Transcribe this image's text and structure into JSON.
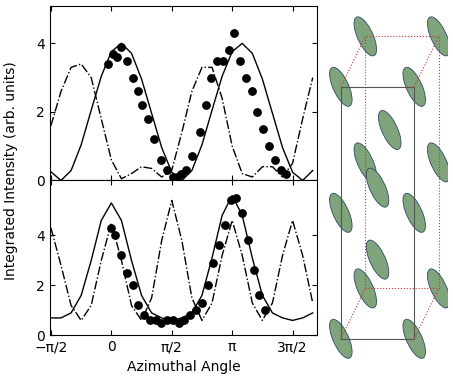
{
  "chart_data": [
    {
      "type": "line",
      "y_label": "Integrated Intensity (arb. units)",
      "xlim": [
        -1.6,
        5.35
      ],
      "ylim": [
        0,
        5.1
      ],
      "xticks": [
        {
          "value": -1.5708,
          "label": "−π/2"
        },
        0,
        {
          "value": 1.5708,
          "label": "π/2"
        },
        {
          "value": 3.1416,
          "label": "π"
        },
        {
          "value": 4.7124,
          "label": "3π/2"
        }
      ],
      "yticks": [
        0,
        2,
        4
      ],
      "tick_labels": "y",
      "series": [
        {
          "type": "scatter",
          "marker": "o",
          "color": "#000000",
          "x": [
            -0.1,
            0.05,
            0.15,
            0.25,
            0.4,
            0.55,
            0.7,
            0.8,
            0.95,
            1.1,
            1.3,
            1.45,
            1.6,
            1.7,
            1.8,
            1.95,
            2.1,
            2.3,
            2.45,
            2.6,
            2.75,
            2.9,
            3.05,
            3.2,
            3.35,
            3.5,
            3.65,
            3.8,
            3.95,
            4.1,
            4.25,
            4.4,
            4.55
          ],
          "values": [
            3.4,
            3.7,
            3.6,
            3.9,
            3.5,
            3.0,
            2.6,
            2.2,
            1.8,
            1.2,
            0.6,
            0.3,
            0.1,
            0.1,
            0.2,
            0.3,
            0.7,
            1.4,
            2.2,
            3.0,
            3.5,
            3.5,
            3.8,
            4.3,
            3.5,
            3.0,
            2.6,
            2.0,
            1.5,
            1.0,
            0.6,
            0.3,
            0.2
          ]
        },
        {
          "type": "line",
          "line_style": "solid",
          "color": "#000000",
          "x": [
            -1.571,
            -1.309,
            -1.047,
            -0.785,
            -0.524,
            -0.262,
            0,
            0.262,
            0.524,
            0.785,
            1.047,
            1.309,
            1.571,
            1.833,
            2.094,
            2.356,
            2.618,
            2.88,
            3.142,
            3.403,
            3.665,
            3.927,
            4.189,
            4.451,
            4.712,
            4.974,
            5.236
          ],
          "values": [
            0.25,
            0.0,
            0.29,
            1.04,
            2.05,
            3.04,
            3.76,
            4.0,
            3.71,
            2.96,
            1.96,
            0.96,
            0.24,
            0.0,
            0.29,
            1.04,
            2.05,
            3.04,
            3.76,
            4.0,
            3.71,
            2.96,
            1.96,
            0.96,
            0.24,
            0.0,
            0.29
          ]
        },
        {
          "type": "line",
          "line_style": "dashdot",
          "color": "#000000",
          "x": [
            -1.571,
            -1.309,
            -1.047,
            -0.785,
            -0.524,
            -0.262,
            0,
            0.262,
            0.524,
            0.785,
            1.047,
            1.309,
            1.571,
            1.833,
            2.094,
            2.356,
            2.618,
            2.88,
            3.142,
            3.403,
            3.665,
            3.927,
            4.189,
            4.451,
            4.712,
            4.974,
            5.236
          ],
          "values": [
            1.6,
            2.6,
            3.3,
            3.4,
            3.0,
            1.8,
            0.6,
            0.05,
            0.2,
            0.4,
            0.35,
            0.1,
            0.3,
            1.4,
            2.6,
            3.3,
            3.3,
            2.4,
            1.0,
            0.2,
            0.1,
            0.4,
            0.4,
            0.1,
            0.5,
            1.8,
            3.0
          ]
        }
      ]
    },
    {
      "type": "line",
      "x_label": "Azimuthal Angle",
      "xlim": [
        -1.6,
        5.35
      ],
      "ylim": [
        0,
        6.2
      ],
      "xticks": [
        {
          "value": -1.5708,
          "label": "−π/2"
        },
        0,
        {
          "value": 1.5708,
          "label": "π/2"
        },
        {
          "value": 3.1416,
          "label": "π"
        },
        {
          "value": 4.7124,
          "label": "3π/2"
        }
      ],
      "yticks": [
        0,
        2,
        4
      ],
      "series": [
        {
          "type": "scatter",
          "marker": "o",
          "color": "#000000",
          "x": [
            0,
            0.1,
            0.25,
            0.4,
            0.55,
            0.7,
            0.85,
            1.0,
            1.15,
            1.3,
            1.45,
            1.6,
            1.75,
            1.9,
            2.05,
            2.2,
            2.35,
            2.5,
            2.65,
            2.8,
            2.95,
            3.1,
            3.25,
            3.4,
            3.55,
            3.7,
            3.85,
            4.0
          ],
          "values": [
            4.3,
            4.0,
            3.2,
            2.5,
            2.0,
            1.2,
            0.8,
            0.6,
            0.6,
            0.5,
            0.6,
            0.6,
            0.5,
            0.6,
            0.8,
            1.0,
            1.3,
            2.0,
            2.9,
            3.6,
            4.4,
            5.4,
            5.5,
            4.9,
            3.8,
            2.6,
            1.6,
            1.0
          ]
        },
        {
          "type": "line",
          "line_style": "solid",
          "color": "#000000",
          "x": [
            -1.571,
            -1.309,
            -1.047,
            -0.785,
            -0.524,
            -0.262,
            0,
            0.262,
            0.524,
            0.785,
            1.047,
            1.309,
            1.571,
            1.833,
            2.094,
            2.356,
            2.618,
            2.88,
            3.142,
            3.403,
            3.665,
            3.927,
            4.189,
            4.451,
            4.712,
            4.974,
            5.236
          ],
          "values": [
            0.7,
            0.7,
            0.9,
            1.6,
            3.0,
            4.6,
            5.3,
            4.6,
            3.0,
            1.6,
            0.9,
            0.7,
            0.6,
            0.7,
            0.9,
            1.6,
            3.1,
            4.8,
            5.6,
            4.8,
            3.1,
            1.6,
            0.9,
            0.7,
            0.6,
            0.7,
            0.9
          ]
        },
        {
          "type": "line",
          "line_style": "dashdot",
          "color": "#000000",
          "x": [
            -1.571,
            -1.309,
            -1.047,
            -0.785,
            -0.524,
            -0.262,
            0,
            0.262,
            0.524,
            0.785,
            1.047,
            1.309,
            1.571,
            1.833,
            2.094,
            2.356,
            2.618,
            2.88,
            3.142,
            3.403,
            3.665,
            3.927,
            4.189,
            4.451,
            4.712,
            4.974,
            5.236
          ],
          "values": [
            4.3,
            2.8,
            1.2,
            0.6,
            1.2,
            3.0,
            4.5,
            3.0,
            1.2,
            0.6,
            1.5,
            3.8,
            5.4,
            3.8,
            1.5,
            0.6,
            1.3,
            3.2,
            4.6,
            3.2,
            1.3,
            0.6,
            1.3,
            3.2,
            4.6,
            3.2,
            1.3
          ]
        }
      ]
    }
  ]
}
